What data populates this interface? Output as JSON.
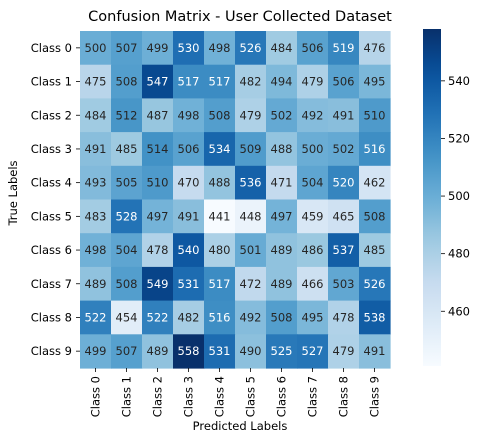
{
  "chart_data": {
    "type": "heatmap",
    "title": "Confusion Matrix - User Collected Dataset",
    "xlabel": "Predicted Labels",
    "ylabel": "True Labels",
    "x_categories": [
      "Class 0",
      "Class 1",
      "Class 2",
      "Class 3",
      "Class 4",
      "Class 5",
      "Class 6",
      "Class 7",
      "Class 8",
      "Class 9"
    ],
    "y_categories": [
      "Class 0",
      "Class 1",
      "Class 2",
      "Class 3",
      "Class 4",
      "Class 5",
      "Class 6",
      "Class 7",
      "Class 8",
      "Class 9"
    ],
    "values": [
      [
        500,
        507,
        499,
        530,
        498,
        526,
        484,
        506,
        519,
        476
      ],
      [
        475,
        508,
        547,
        517,
        517,
        482,
        494,
        479,
        506,
        495
      ],
      [
        484,
        512,
        487,
        498,
        508,
        479,
        502,
        492,
        491,
        510
      ],
      [
        491,
        485,
        514,
        506,
        534,
        509,
        488,
        500,
        502,
        516
      ],
      [
        493,
        505,
        510,
        470,
        488,
        536,
        471,
        504,
        520,
        462
      ],
      [
        483,
        528,
        497,
        491,
        441,
        448,
        497,
        459,
        465,
        508
      ],
      [
        498,
        504,
        478,
        540,
        480,
        501,
        489,
        486,
        537,
        485
      ],
      [
        489,
        508,
        549,
        531,
        517,
        472,
        489,
        466,
        503,
        526
      ],
      [
        522,
        454,
        522,
        482,
        516,
        492,
        508,
        495,
        478,
        538
      ],
      [
        499,
        507,
        489,
        558,
        531,
        490,
        525,
        527,
        479,
        491
      ]
    ],
    "colormap": "Blues",
    "annotations": true,
    "vmin": 441,
    "vmax": 558,
    "colorbar_ticks": [
      460,
      480,
      500,
      520,
      540
    ]
  }
}
